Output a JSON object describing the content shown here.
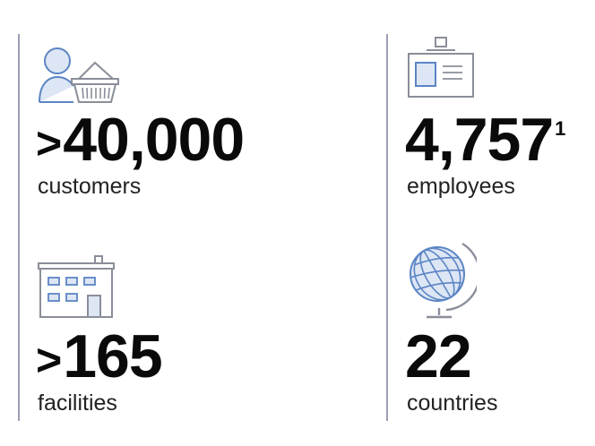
{
  "stats": [
    {
      "prefix": ">",
      "value": "40,000",
      "footnote": "",
      "label": "customers",
      "icon": "customer-basket-icon"
    },
    {
      "prefix": "",
      "value": "4,757",
      "footnote": "1",
      "label": "employees",
      "icon": "id-badge-icon"
    },
    {
      "prefix": ">",
      "value": "165",
      "footnote": "",
      "label": "facilities",
      "icon": "building-icon"
    },
    {
      "prefix": "",
      "value": "22",
      "footnote": "",
      "label": "countries",
      "icon": "globe-icon"
    }
  ],
  "colors": {
    "icon_blue": "#5b85c4",
    "icon_fill": "#dde6f5",
    "icon_gray": "#8a8e99",
    "divider": "#9a9fb2",
    "text": "#111111"
  }
}
